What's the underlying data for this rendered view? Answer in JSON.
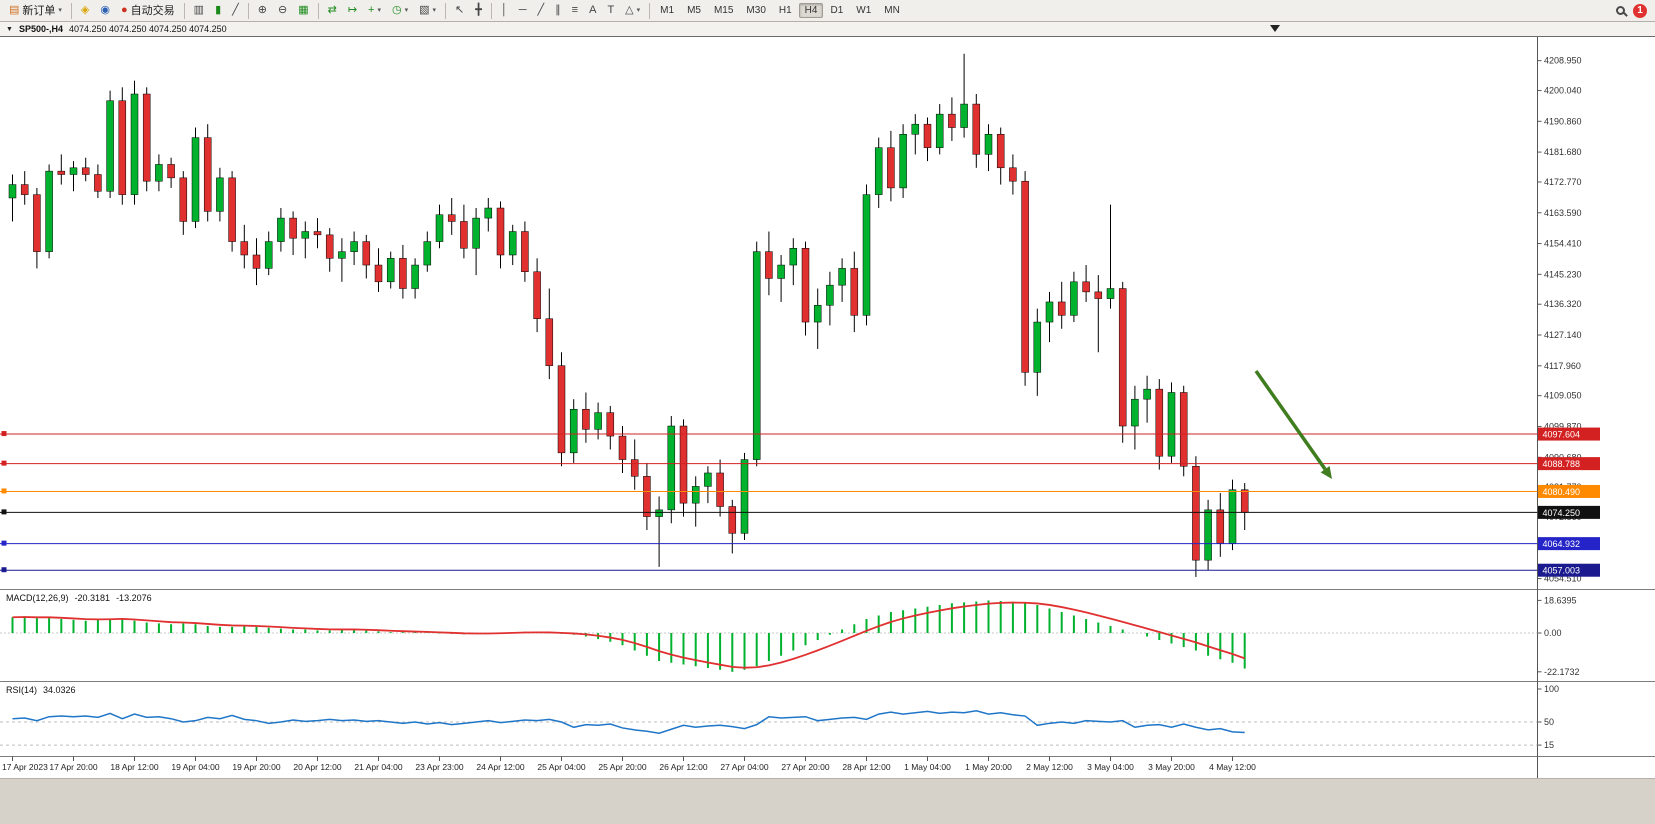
{
  "toolbar": {
    "new_order_label": "新订单",
    "auto_trading_label": "自动交易",
    "timeframes": [
      "M1",
      "M5",
      "M15",
      "M30",
      "H1",
      "H4",
      "D1",
      "W1",
      "MN"
    ],
    "active_timeframe": "H4",
    "notification_count": "1",
    "icons": {
      "caret": "▾",
      "new_order": "▤",
      "wizard": "◈",
      "community": "◉",
      "auto_trading": "●",
      "bar_chart": "▥",
      "candlestick": "▮",
      "line_chart": "╱",
      "zoom_in": "⊕",
      "zoom_out": "⊖",
      "tile_windows": "▦",
      "auto_scroll": "⇄",
      "chart_shift": "↦",
      "indicators": "+",
      "periods": "◷",
      "templates": "▧",
      "cursor": "↖",
      "crosshair": "╋",
      "vline": "│",
      "hline": "─",
      "trendline": "╱",
      "channel": "∥",
      "fibonacci": "≡",
      "text": "A",
      "label": "T",
      "shapes": "△"
    }
  },
  "chart_header": {
    "caret": "▼",
    "title": "SP500-,H4",
    "ohlc_text": "4074.250 4074.250 4074.250 4074.250"
  },
  "chart_data": {
    "type": "candlestick",
    "symbol": "SP500-",
    "timeframe": "H4",
    "price_range": [
      4052,
      4216
    ],
    "colors": {
      "bull": "#00b22d",
      "bear": "#e03030",
      "wick": "#000000",
      "background": "#ffffff"
    },
    "candles": [
      [
        4168,
        4175,
        4161,
        4172
      ],
      [
        4172,
        4176,
        4166,
        4169
      ],
      [
        4169,
        4171,
        4147,
        4152
      ],
      [
        4152,
        4178,
        4150,
        4176
      ],
      [
        4176,
        4181,
        4172,
        4175
      ],
      [
        4175,
        4179,
        4170,
        4177
      ],
      [
        4177,
        4180,
        4173,
        4175
      ],
      [
        4175,
        4178,
        4168,
        4170
      ],
      [
        4170,
        4200,
        4168,
        4197
      ],
      [
        4197,
        4201,
        4166,
        4169
      ],
      [
        4169,
        4203,
        4166,
        4199
      ],
      [
        4199,
        4201,
        4170,
        4173
      ],
      [
        4173,
        4181,
        4170,
        4178
      ],
      [
        4178,
        4180,
        4171,
        4174
      ],
      [
        4174,
        4176,
        4157,
        4161
      ],
      [
        4161,
        4189,
        4159,
        4186
      ],
      [
        4186,
        4190,
        4161,
        4164
      ],
      [
        4164,
        4177,
        4161,
        4174
      ],
      [
        4174,
        4176,
        4152,
        4155
      ],
      [
        4155,
        4160,
        4147,
        4151
      ],
      [
        4151,
        4156,
        4142,
        4147
      ],
      [
        4147,
        4158,
        4145,
        4155
      ],
      [
        4155,
        4165,
        4152,
        4162
      ],
      [
        4162,
        4164,
        4151,
        4156
      ],
      [
        4156,
        4161,
        4150,
        4158
      ],
      [
        4158,
        4162,
        4153,
        4157
      ],
      [
        4157,
        4159,
        4146,
        4150
      ],
      [
        4150,
        4156,
        4143,
        4152
      ],
      [
        4152,
        4158,
        4148,
        4155
      ],
      [
        4155,
        4157,
        4144,
        4148
      ],
      [
        4148,
        4153,
        4140,
        4143
      ],
      [
        4143,
        4152,
        4141,
        4150
      ],
      [
        4150,
        4154,
        4138,
        4141
      ],
      [
        4141,
        4150,
        4138,
        4148
      ],
      [
        4148,
        4158,
        4146,
        4155
      ],
      [
        4155,
        4166,
        4153,
        4163
      ],
      [
        4163,
        4168,
        4157,
        4161
      ],
      [
        4161,
        4166,
        4150,
        4153
      ],
      [
        4153,
        4165,
        4145,
        4162
      ],
      [
        4162,
        4168,
        4158,
        4165
      ],
      [
        4165,
        4167,
        4147,
        4151
      ],
      [
        4151,
        4160,
        4148,
        4158
      ],
      [
        4158,
        4161,
        4143,
        4146
      ],
      [
        4146,
        4150,
        4128,
        4132
      ],
      [
        4132,
        4141,
        4114,
        4118
      ],
      [
        4118,
        4122,
        4088,
        4092
      ],
      [
        4092,
        4108,
        4089,
        4105
      ],
      [
        4105,
        4110,
        4095,
        4099
      ],
      [
        4099,
        4107,
        4096,
        4104
      ],
      [
        4104,
        4106,
        4093,
        4097
      ],
      [
        4097,
        4100,
        4086,
        4090
      ],
      [
        4090,
        4096,
        4081,
        4085
      ],
      [
        4085,
        4089,
        4069,
        4073
      ],
      [
        4073,
        4079,
        4058,
        4075
      ],
      [
        4075,
        4103,
        4071,
        4100
      ],
      [
        4100,
        4102,
        4073,
        4077
      ],
      [
        4077,
        4085,
        4070,
        4082
      ],
      [
        4082,
        4088,
        4077,
        4086
      ],
      [
        4086,
        4090,
        4073,
        4076
      ],
      [
        4076,
        4078,
        4062,
        4068
      ],
      [
        4068,
        4092,
        4066,
        4090
      ],
      [
        4090,
        4155,
        4088,
        4152
      ],
      [
        4152,
        4158,
        4139,
        4144
      ],
      [
        4144,
        4151,
        4137,
        4148
      ],
      [
        4148,
        4156,
        4142,
        4153
      ],
      [
        4153,
        4155,
        4127,
        4131
      ],
      [
        4131,
        4141,
        4123,
        4136
      ],
      [
        4136,
        4146,
        4130,
        4142
      ],
      [
        4142,
        4150,
        4137,
        4147
      ],
      [
        4147,
        4152,
        4128,
        4133
      ],
      [
        4133,
        4172,
        4130,
        4169
      ],
      [
        4169,
        4186,
        4165,
        4183
      ],
      [
        4183,
        4188,
        4167,
        4171
      ],
      [
        4171,
        4190,
        4168,
        4187
      ],
      [
        4187,
        4193,
        4181,
        4190
      ],
      [
        4190,
        4192,
        4179,
        4183
      ],
      [
        4183,
        4196,
        4181,
        4193
      ],
      [
        4193,
        4198,
        4185,
        4189
      ],
      [
        4189,
        4211,
        4186,
        4196
      ],
      [
        4196,
        4199,
        4177,
        4181
      ],
      [
        4181,
        4190,
        4176,
        4187
      ],
      [
        4187,
        4189,
        4172,
        4177
      ],
      [
        4177,
        4181,
        4169,
        4173
      ],
      [
        4173,
        4176,
        4112,
        4116
      ],
      [
        4116,
        4135,
        4109,
        4131
      ],
      [
        4131,
        4140,
        4125,
        4137
      ],
      [
        4137,
        4143,
        4129,
        4133
      ],
      [
        4133,
        4146,
        4131,
        4143
      ],
      [
        4143,
        4148,
        4137,
        4140
      ],
      [
        4140,
        4145,
        4122,
        4138
      ],
      [
        4138,
        4166,
        4135,
        4141
      ],
      [
        4141,
        4143,
        4095,
        4100
      ],
      [
        4100,
        4112,
        4093,
        4108
      ],
      [
        4108,
        4115,
        4101,
        4111
      ],
      [
        4111,
        4114,
        4087,
        4091
      ],
      [
        4091,
        4113,
        4089,
        4110
      ],
      [
        4110,
        4112,
        4085,
        4088
      ],
      [
        4088,
        4091,
        4055,
        4060
      ],
      [
        4060,
        4078,
        4057,
        4075
      ],
      [
        4075,
        4080,
        4061,
        4065
      ],
      [
        4065,
        4084,
        4063,
        4081
      ],
      [
        4081,
        4083,
        4069,
        4074.25
      ]
    ],
    "price_axis_labels": [
      "4208.950",
      "4200.040",
      "4190.860",
      "4181.680",
      "4172.770",
      "4163.590",
      "4154.410",
      "4145.230",
      "4136.320",
      "4127.140",
      "4117.960",
      "4109.050",
      "4099.870",
      "4090.680",
      "4081.770",
      "4072.860",
      "4063.950",
      "4054.510"
    ],
    "time_axis_labels": [
      "17 Apr 2023",
      "17 Apr 20:00",
      "18 Apr 12:00",
      "19 Apr 04:00",
      "19 Apr 20:00",
      "20 Apr 12:00",
      "21 Apr 04:00",
      "23 Apr 23:00",
      "24 Apr 12:00",
      "25 Apr 04:00",
      "25 Apr 20:00",
      "26 Apr 12:00",
      "27 Apr 04:00",
      "27 Apr 20:00",
      "28 Apr 12:00",
      "1 May 04:00",
      "1 May 20:00",
      "2 May 12:00",
      "3 May 04:00",
      "3 May 20:00",
      "4 May 12:00"
    ],
    "hlines": [
      {
        "price": 4097.604,
        "label": "4097.604",
        "color": "#d32020",
        "type": "resistance-line"
      },
      {
        "price": 4088.788,
        "label": "4088.788",
        "color": "#d32020",
        "type": "resistance-line"
      },
      {
        "price": 4080.49,
        "label": "4080.490",
        "color": "#ff8a00",
        "type": "level-line"
      },
      {
        "price": 4074.25,
        "label": "4074.250",
        "color": "#111111",
        "type": "current-price-line"
      },
      {
        "price": 4064.932,
        "label": "4064.932",
        "color": "#2424c8",
        "type": "support-line"
      },
      {
        "price": 4057.003,
        "label": "4057.003",
        "color": "#1b1b8f",
        "type": "support-line"
      }
    ],
    "annotations": [
      {
        "type": "arrow",
        "from": [
          1256,
          334
        ],
        "to": [
          1332,
          442
        ],
        "color": "#3f7d1f"
      }
    ],
    "indicators": {
      "macd": {
        "label": "MACD(12,26,9)",
        "value_main": "-20.3181",
        "value_signal": "-13.2076",
        "axis_labels": [
          "18.6395",
          "0.00",
          "-22.1732"
        ],
        "histogram_color": "#00b22d",
        "signal_color": "#e03030",
        "histogram": [
          9,
          9.5,
          8.5,
          9,
          8,
          7.5,
          7,
          7.5,
          8,
          8.5,
          7,
          6,
          5.5,
          5,
          5.5,
          5,
          4,
          3.5,
          3.5,
          4,
          3.5,
          3,
          2.5,
          2,
          2,
          1.5,
          1.5,
          2,
          2,
          1.5,
          1,
          0.5,
          0.5,
          0.3,
          0.2,
          -0.3,
          -0.5,
          -0.8,
          -0.5,
          -0.3,
          0.2,
          0.5,
          0.8,
          0.5,
          0.3,
          -0.5,
          -1,
          -2,
          -3.5,
          -5,
          -7,
          -10,
          -13,
          -16,
          -17,
          -18,
          -19,
          -20,
          -21,
          -22.2,
          -21,
          -19,
          -16,
          -13,
          -10,
          -7,
          -4,
          -1,
          2,
          5,
          8,
          10,
          12,
          13,
          14,
          15,
          16,
          17,
          17.5,
          18,
          18.6,
          18.3,
          17.8,
          17,
          16,
          14,
          12,
          10,
          8,
          6,
          4,
          2,
          0,
          -2,
          -4,
          -6,
          -8,
          -10,
          -13,
          -15,
          -17,
          -20.3
        ]
      },
      "rsi": {
        "label": "RSI(14)",
        "value": "34.0326",
        "axis_labels": [
          "100",
          "50",
          "15"
        ],
        "levels": [
          50,
          15
        ],
        "line_color": "#1f76c8",
        "values": [
          55,
          56,
          52,
          58,
          59,
          58,
          59,
          57,
          63,
          55,
          62,
          57,
          58,
          55,
          50,
          52,
          57,
          55,
          60,
          54,
          52,
          48,
          50,
          53,
          51,
          52,
          54,
          52,
          53,
          51,
          52,
          50,
          48,
          50,
          47,
          49,
          46,
          48,
          50,
          52,
          49,
          51,
          53,
          52,
          54,
          50,
          42,
          46,
          45,
          47,
          41,
          38,
          36,
          33,
          39,
          45,
          42,
          44,
          45,
          43,
          40,
          46,
          58,
          56,
          57,
          58,
          52,
          54,
          56,
          57,
          54,
          62,
          65,
          62,
          64,
          66,
          63,
          65,
          64,
          67,
          62,
          64,
          61,
          59,
          45,
          48,
          50,
          48,
          52,
          51,
          50,
          52,
          42,
          45,
          46,
          42,
          47,
          42,
          38,
          40,
          35,
          34
        ]
      }
    }
  }
}
